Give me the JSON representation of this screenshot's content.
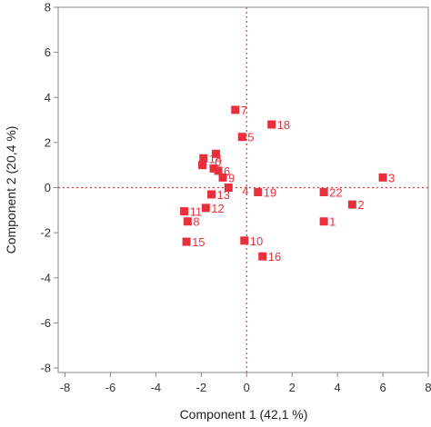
{
  "chart_data": {
    "type": "scatter",
    "title": "",
    "xlabel": "Component 1  (42,1 %)",
    "ylabel": "Component 2  (20,4 %)",
    "xlim": [
      -8.3,
      8
    ],
    "ylim": [
      -8.2,
      8
    ],
    "xticks": [
      -8,
      -6,
      -4,
      -2,
      0,
      2,
      4,
      6,
      8
    ],
    "yticks": [
      -8,
      -6,
      -4,
      -2,
      0,
      2,
      4,
      6,
      8
    ],
    "xtick_labels": [
      "-8",
      "-6",
      "-4",
      "-2",
      "0",
      "2",
      "4",
      "6",
      "8"
    ],
    "ytick_labels": [
      "-8",
      "-6",
      "-4",
      "-2",
      "0",
      "2",
      "4",
      "6",
      "8"
    ],
    "grid": false,
    "reference_lines": {
      "x": 0,
      "y": 0,
      "style": "dotted"
    },
    "marker_color": "#e8303c",
    "points": [
      {
        "label": "1",
        "x": 3.4,
        "y": -1.5
      },
      {
        "label": "2",
        "x": 4.65,
        "y": -0.75
      },
      {
        "label": "3",
        "x": 6.0,
        "y": 0.45
      },
      {
        "label": "5",
        "x": -0.2,
        "y": 2.25
      },
      {
        "label": "6",
        "x": -1.25,
        "y": 0.75
      },
      {
        "label": "7",
        "x": -0.5,
        "y": 3.45
      },
      {
        "label": "8",
        "x": -2.6,
        "y": -1.5
      },
      {
        "label": "9",
        "x": -1.05,
        "y": 0.45
      },
      {
        "label": "10",
        "x": -0.1,
        "y": -2.35
      },
      {
        "label": "11",
        "x": -2.75,
        "y": -1.05
      },
      {
        "label": "12",
        "x": -1.8,
        "y": -0.9
      },
      {
        "label": "13",
        "x": -1.55,
        "y": -0.3
      },
      {
        "label": "14",
        "x": -1.9,
        "y": 1.3
      },
      {
        "label": "15",
        "x": -2.65,
        "y": -2.4
      },
      {
        "label": "16",
        "x": 0.7,
        "y": -3.05
      },
      {
        "label": "18",
        "x": 1.1,
        "y": 2.8
      },
      {
        "label": "19",
        "x": 0.5,
        "y": -0.2
      },
      {
        "label": "22",
        "x": 3.4,
        "y": -0.2
      },
      {
        "label": "",
        "x": -1.35,
        "y": 1.5
      },
      {
        "label": "",
        "x": -1.95,
        "y": 1.0
      },
      {
        "label": "",
        "x": -1.45,
        "y": 0.85
      },
      {
        "label": "",
        "x": -0.8,
        "y": 0.0
      }
    ]
  },
  "extra_labels": [
    {
      "text": "0",
      "x": -1.4,
      "y": 1.15
    },
    {
      "text": "4",
      "x": -0.2,
      "y": -0.12
    }
  ]
}
